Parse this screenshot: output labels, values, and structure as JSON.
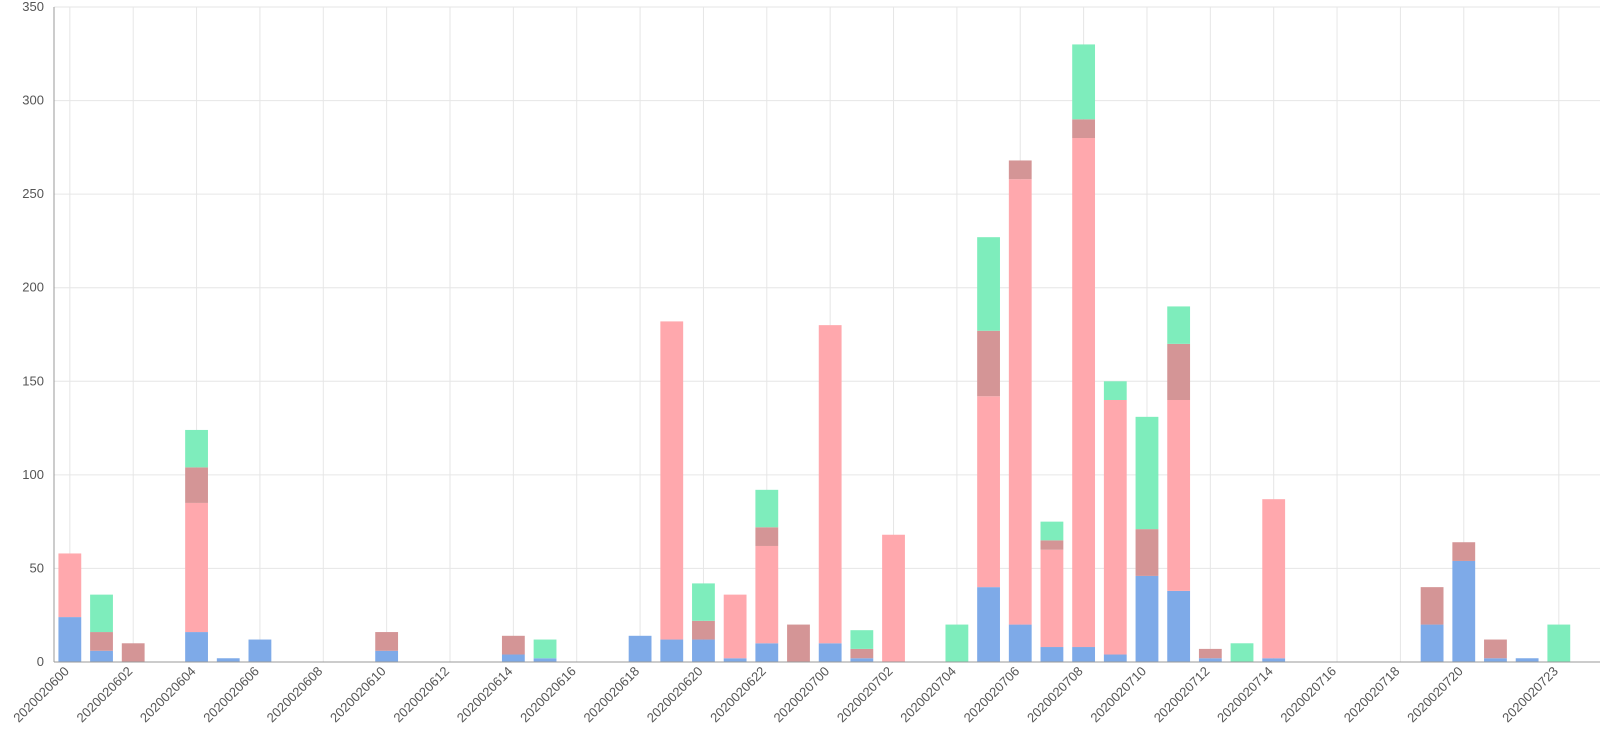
{
  "chart_data": {
    "type": "bar",
    "stacked": true,
    "title": "",
    "xlabel": "",
    "ylabel": "",
    "ylim": [
      0,
      350
    ],
    "yticks": [
      0,
      50,
      100,
      150,
      200,
      250,
      300,
      350
    ],
    "grid": true,
    "legend": "none",
    "categories": [
      "2020020600",
      "2020020601",
      "2020020602",
      "2020020603",
      "2020020604",
      "2020020605",
      "2020020606",
      "2020020607",
      "2020020608",
      "2020020609",
      "2020020610",
      "2020020611",
      "2020020612",
      "2020020613",
      "2020020614",
      "2020020615",
      "2020020616",
      "2020020617",
      "2020020618",
      "2020020619",
      "2020020620",
      "2020020621",
      "2020020622",
      "2020020623",
      "2020020700",
      "2020020701",
      "2020020702",
      "2020020703",
      "2020020704",
      "2020020705",
      "2020020706",
      "2020020707",
      "2020020708",
      "2020020709",
      "2020020710",
      "2020020711",
      "2020020712",
      "2020020713",
      "2020020714",
      "2020020715",
      "2020020716",
      "2020020717",
      "2020020718",
      "2020020719",
      "2020020720",
      "2020020721",
      "2020020722",
      "2020020723"
    ],
    "x_tick_labels": [
      "2020020600",
      "2020020602",
      "2020020604",
      "2020020606",
      "2020020608",
      "2020020610",
      "2020020612",
      "2020020614",
      "2020020616",
      "2020020618",
      "2020020620",
      "2020020622",
      "2020020700",
      "2020020702",
      "2020020704",
      "2020020706",
      "2020020708",
      "2020020710",
      "2020020712",
      "2020020714",
      "2020020716",
      "2020020718",
      "2020020720",
      "2020020723"
    ],
    "series": [
      {
        "color": "#7eaae8",
        "values": [
          24,
          6,
          0,
          0,
          16,
          2,
          12,
          0,
          0,
          0,
          6,
          0,
          0,
          0,
          4,
          2,
          0,
          0,
          14,
          12,
          12,
          2,
          10,
          0,
          10,
          2,
          0,
          0,
          0,
          40,
          20,
          8,
          8,
          4,
          46,
          38,
          2,
          0,
          2,
          0,
          0,
          0,
          0,
          20,
          54,
          2,
          2,
          0
        ]
      },
      {
        "color": "#ffa8ad",
        "values": [
          34,
          0,
          0,
          0,
          69,
          0,
          0,
          0,
          0,
          0,
          0,
          0,
          0,
          0,
          0,
          0,
          0,
          0,
          0,
          170,
          0,
          34,
          52,
          0,
          170,
          0,
          68,
          0,
          0,
          102,
          238,
          52,
          272,
          136,
          0,
          102,
          0,
          0,
          85,
          0,
          0,
          0,
          0,
          0,
          0,
          0,
          0,
          0
        ]
      },
      {
        "color": "#d49596",
        "values": [
          0,
          10,
          10,
          0,
          19,
          0,
          0,
          0,
          0,
          0,
          10,
          0,
          0,
          0,
          10,
          0,
          0,
          0,
          0,
          0,
          10,
          0,
          10,
          20,
          0,
          5,
          0,
          0,
          0,
          35,
          10,
          5,
          10,
          0,
          25,
          30,
          5,
          0,
          0,
          0,
          0,
          0,
          0,
          20,
          10,
          10,
          0,
          0
        ]
      },
      {
        "color": "#7eedbc",
        "values": [
          0,
          20,
          0,
          0,
          20,
          0,
          0,
          0,
          0,
          0,
          0,
          0,
          0,
          0,
          0,
          10,
          0,
          0,
          0,
          0,
          20,
          0,
          20,
          0,
          0,
          10,
          0,
          0,
          20,
          50,
          0,
          10,
          40,
          10,
          60,
          20,
          0,
          10,
          0,
          0,
          0,
          0,
          0,
          0,
          0,
          0,
          0,
          20
        ]
      }
    ]
  }
}
